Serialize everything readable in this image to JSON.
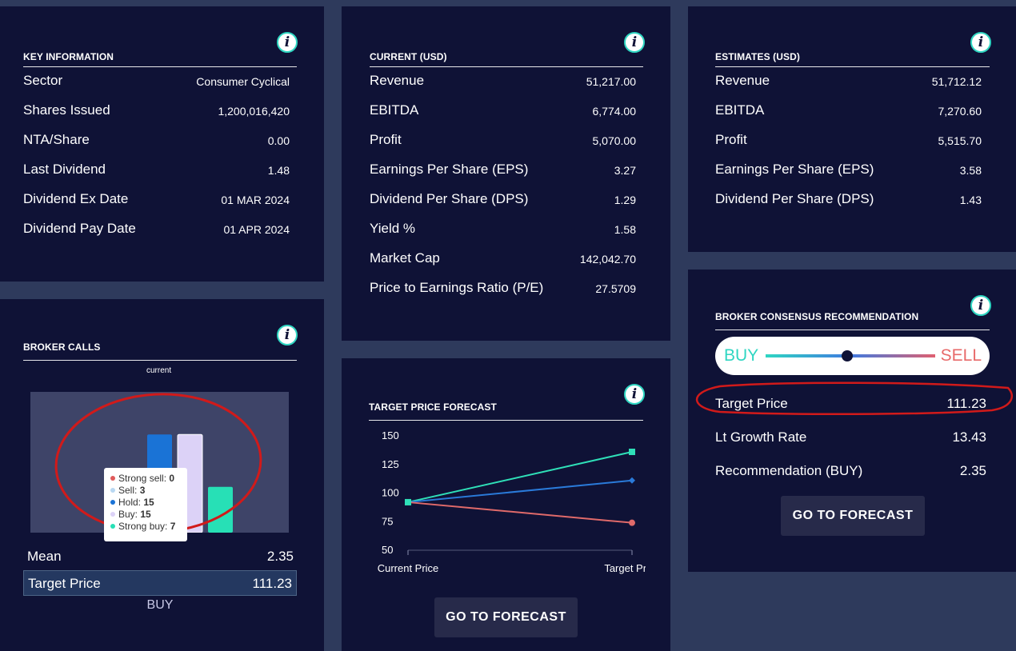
{
  "key_info": {
    "title": "KEY INFORMATION",
    "rows": [
      {
        "label": "Sector",
        "value": "Consumer Cyclical"
      },
      {
        "label": "Shares Issued",
        "value": "1,200,016,420"
      },
      {
        "label": "NTA/Share",
        "value": "0.00"
      },
      {
        "label": "Last Dividend",
        "value": "1.48"
      },
      {
        "label": "Dividend Ex Date",
        "value": "01 MAR 2024"
      },
      {
        "label": "Dividend Pay Date",
        "value": "01 APR 2024"
      }
    ]
  },
  "current": {
    "title": "CURRENT (USD)",
    "rows": [
      {
        "label": "Revenue",
        "value": "51,217.00"
      },
      {
        "label": "EBITDA",
        "value": "6,774.00"
      },
      {
        "label": "Profit",
        "value": "5,070.00"
      },
      {
        "label": "Earnings Per Share (EPS)",
        "value": "3.27"
      },
      {
        "label": "Dividend Per Share (DPS)",
        "value": "1.29"
      },
      {
        "label": "Yield %",
        "value": "1.58"
      },
      {
        "label": "Market Cap",
        "value": "142,042.70"
      },
      {
        "label": "Price to Earnings Ratio (P/E)",
        "value": "27.5709"
      }
    ]
  },
  "estimates": {
    "title": "ESTIMATES (USD)",
    "rows": [
      {
        "label": "Revenue",
        "value": "51,712.12"
      },
      {
        "label": "EBITDA",
        "value": "7,270.60"
      },
      {
        "label": "Profit",
        "value": "5,515.70"
      },
      {
        "label": "Earnings Per Share (EPS)",
        "value": "3.58"
      },
      {
        "label": "Dividend Per Share (DPS)",
        "value": "1.43"
      }
    ]
  },
  "broker_calls": {
    "title": "BROKER CALLS",
    "chart_caption": "current",
    "tooltip": [
      {
        "label": "Strong sell:",
        "value": "0",
        "color": "#e05a5a"
      },
      {
        "label": "Sell:",
        "value": "3",
        "color": "#b9d8f2"
      },
      {
        "label": "Hold:",
        "value": "15",
        "color": "#1a73d6"
      },
      {
        "label": "Buy:",
        "value": "15",
        "color": "#dcd2f7"
      },
      {
        "label": "Strong buy:",
        "value": "7",
        "color": "#27e0b6"
      }
    ],
    "mean_label": "Mean",
    "mean_value": "2.35",
    "target_label": "Target Price",
    "target_value": "111.23",
    "recommendation": "BUY"
  },
  "target_forecast": {
    "title": "TARGET PRICE FORECAST",
    "button": "GO TO FORECAST"
  },
  "consensus": {
    "title": "BROKER CONSENSUS RECOMMENDATION",
    "buy_label": "BUY",
    "sell_label": "SELL",
    "slider_position": 0.48,
    "rows": [
      {
        "label": "Target Price",
        "value": "111.23"
      },
      {
        "label": "Lt Growth Rate",
        "value": "13.43"
      },
      {
        "label": "Recommendation (BUY)",
        "value": "2.35"
      }
    ],
    "button": "GO TO FORECAST"
  },
  "chart_data": [
    {
      "type": "bar",
      "title": "current",
      "categories": [
        "Strong sell",
        "Sell",
        "Hold",
        "Buy",
        "Strong buy"
      ],
      "values": [
        0,
        3,
        15,
        15,
        7
      ],
      "colors": [
        "#e05a5a",
        "#b9d8f2",
        "#1a73d6",
        "#dcd2f7",
        "#27e0b6"
      ],
      "ylim": [
        0,
        16
      ]
    },
    {
      "type": "line",
      "title": "TARGET PRICE FORECAST",
      "x": [
        "Current Price",
        "Target Price"
      ],
      "yticks": [
        "150",
        "125",
        "100",
        "75",
        "50"
      ],
      "ylim": [
        50,
        150
      ],
      "series": [
        {
          "values": [
            92,
            136
          ],
          "color": "#2fe0b8"
        },
        {
          "values": [
            92,
            111
          ],
          "color": "#2a7ad9"
        },
        {
          "values": [
            92,
            74
          ],
          "color": "#e06a6a"
        }
      ]
    }
  ]
}
